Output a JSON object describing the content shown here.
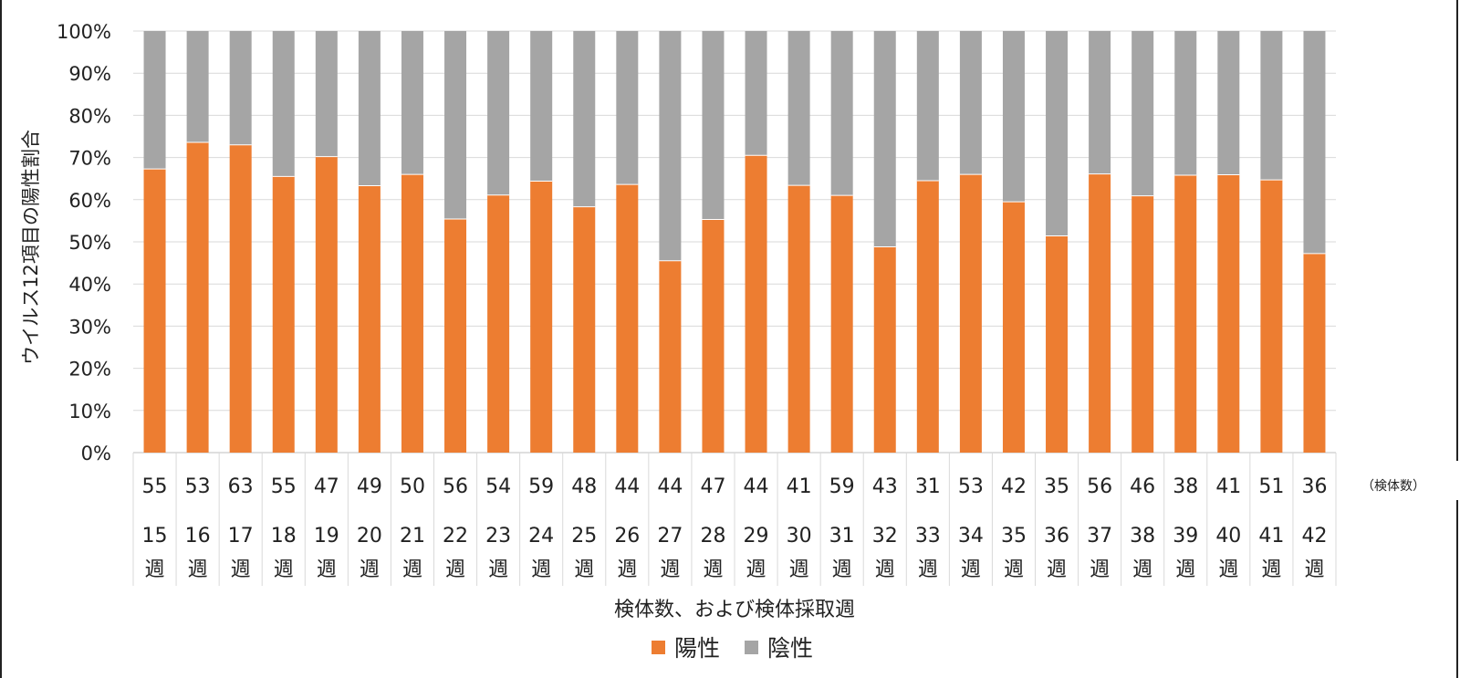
{
  "chart_data": {
    "type": "bar",
    "stacked": true,
    "ylabel": "ウイルス12項目の陽性割合",
    "xlabel": "検体数、および検体採取週",
    "count_unit_label": "（検体数）",
    "y_ticks": [
      "0%",
      "10%",
      "20%",
      "30%",
      "40%",
      "50%",
      "60%",
      "70%",
      "80%",
      "90%",
      "100%"
    ],
    "ylim": [
      0,
      100
    ],
    "grid": true,
    "legend_position": "bottom",
    "categories": [
      "15週",
      "16週",
      "17週",
      "18週",
      "19週",
      "20週",
      "21週",
      "22週",
      "23週",
      "24週",
      "25週",
      "26週",
      "27週",
      "28週",
      "29週",
      "30週",
      "31週",
      "32週",
      "33週",
      "34週",
      "35週",
      "36週",
      "37週",
      "38週",
      "39週",
      "40週",
      "41週",
      "42週"
    ],
    "weeks": [
      "15",
      "16",
      "17",
      "18",
      "19",
      "20",
      "21",
      "22",
      "23",
      "24",
      "25",
      "26",
      "27",
      "28",
      "29",
      "30",
      "31",
      "32",
      "33",
      "34",
      "35",
      "36",
      "37",
      "38",
      "39",
      "40",
      "41",
      "42"
    ],
    "week_suffix": "週",
    "counts": [
      "55",
      "53",
      "63",
      "55",
      "47",
      "49",
      "50",
      "56",
      "54",
      "59",
      "48",
      "44",
      "44",
      "47",
      "44",
      "41",
      "59",
      "43",
      "31",
      "53",
      "42",
      "35",
      "56",
      "46",
      "38",
      "41",
      "51",
      "36"
    ],
    "series": [
      {
        "name": "陽性",
        "color": "#ED7D31",
        "values": [
          67.3,
          73.6,
          73.0,
          65.5,
          70.2,
          63.3,
          66.0,
          55.4,
          61.1,
          64.4,
          58.3,
          63.6,
          45.5,
          55.3,
          70.5,
          63.4,
          61.0,
          48.8,
          64.5,
          66.0,
          59.5,
          51.4,
          66.1,
          60.9,
          65.8,
          65.9,
          64.7,
          47.2
        ]
      },
      {
        "name": "陰性",
        "color": "#A5A5A5",
        "values": [
          32.7,
          26.4,
          27.0,
          34.5,
          29.8,
          36.7,
          34.0,
          44.6,
          38.9,
          35.6,
          41.7,
          36.4,
          54.5,
          44.7,
          29.5,
          36.6,
          39.0,
          51.2,
          35.5,
          34.0,
          40.5,
          48.6,
          33.9,
          39.1,
          34.2,
          34.1,
          35.3,
          52.8
        ]
      }
    ]
  }
}
